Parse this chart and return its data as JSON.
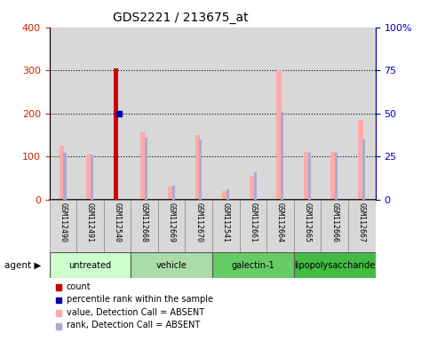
{
  "title": "GDS2221 / 213675_at",
  "samples": [
    "GSM112490",
    "GSM112491",
    "GSM112540",
    "GSM112668",
    "GSM112669",
    "GSM112670",
    "GSM112541",
    "GSM112661",
    "GSM112664",
    "GSM112665",
    "GSM112666",
    "GSM112667"
  ],
  "groups": [
    {
      "label": "untreated",
      "color": "#ccffcc",
      "indices": [
        0,
        1,
        2
      ]
    },
    {
      "label": "vehicle",
      "color": "#aaddaa",
      "indices": [
        3,
        4,
        5
      ]
    },
    {
      "label": "galectin-1",
      "color": "#66cc66",
      "indices": [
        6,
        7,
        8
      ]
    },
    {
      "label": "lipopolysaccharide",
      "color": "#44bb44",
      "indices": [
        9,
        10,
        11
      ]
    }
  ],
  "pink_bars": [
    125,
    105,
    305,
    155,
    30,
    150,
    20,
    55,
    300,
    110,
    110,
    185
  ],
  "blue_bars_pct": [
    27,
    26,
    50,
    36,
    8,
    35,
    6,
    16,
    51,
    27,
    27,
    35
  ],
  "red_bar_index": 2,
  "red_bar_value": 305,
  "blue_dot_index": 2,
  "blue_dot_pct": 50,
  "ylim_left": [
    0,
    400
  ],
  "ylim_right": [
    0,
    100
  ],
  "yticks_left": [
    0,
    100,
    200,
    300,
    400
  ],
  "yticks_right": [
    0,
    25,
    50,
    75,
    100
  ],
  "ytick_labels_right": [
    "0",
    "25",
    "50",
    "75",
    "100%"
  ],
  "left_axis_color": "#cc2200",
  "right_axis_color": "#0000bb",
  "pink_color": "#ffaaaa",
  "blue_color": "#aaaacc",
  "red_color": "#cc0000",
  "dark_blue_color": "#0000aa",
  "bar_bg_color": "#d8d8d8",
  "legend_items": [
    {
      "color": "#cc0000",
      "label": "count"
    },
    {
      "color": "#0000aa",
      "label": "percentile rank within the sample"
    },
    {
      "color": "#ffaaaa",
      "label": "value, Detection Call = ABSENT"
    },
    {
      "color": "#aaaacc",
      "label": "rank, Detection Call = ABSENT"
    }
  ]
}
